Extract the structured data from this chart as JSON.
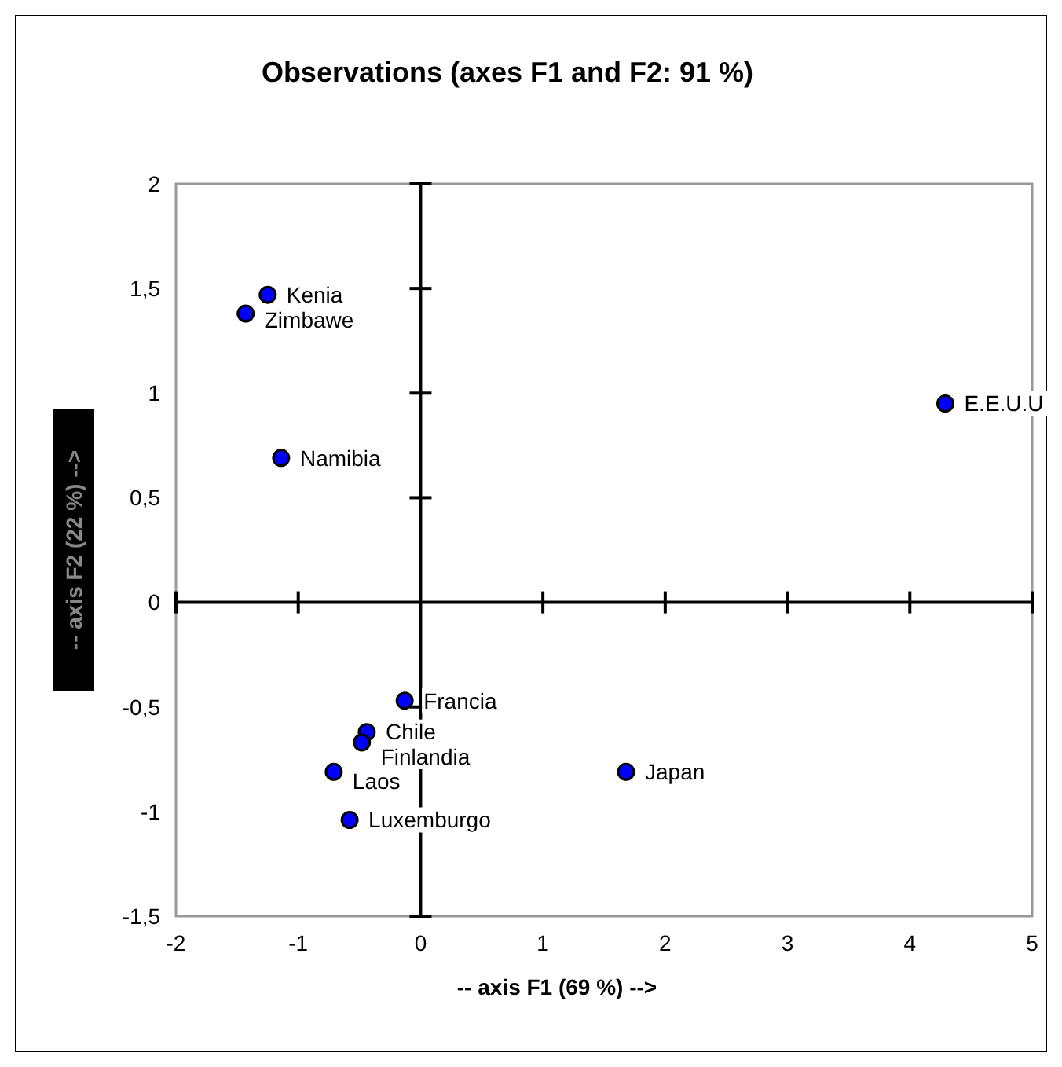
{
  "chart_data": {
    "type": "scatter",
    "title": "Observations (axes F1 and F2: 91 %)",
    "xlabel": "-- axis F1 (69 %) -->",
    "ylabel": "-- axis F2 (22 %) -->",
    "x": [
      -1.25,
      -1.43,
      -1.14,
      4.29,
      -0.13,
      -0.44,
      -0.48,
      -0.71,
      1.68,
      -0.58
    ],
    "series": [
      {
        "color": "#0000ff",
        "values": [
          1.47,
          1.38,
          0.69,
          0.95,
          -0.47,
          -0.62,
          -0.67,
          -0.81,
          -0.81,
          -1.04
        ]
      }
    ],
    "marker": "circle",
    "ref_lines": [
      {
        "axis": "x",
        "value": 0,
        "color": "#000000"
      }
    ],
    "xlim": [
      -2,
      5
    ],
    "xticks": [
      -2,
      -1,
      0,
      1,
      2,
      3,
      4,
      5
    ],
    "ylim": [
      -1.5,
      2
    ],
    "yticks": [
      {
        "value": -1.5,
        "label": "-1,5"
      },
      -1,
      {
        "value": -0.5,
        "label": "-0,5"
      },
      0,
      {
        "value": 0.5,
        "label": "0,5"
      },
      1,
      {
        "value": 1.5,
        "label": "1,5"
      },
      2
    ],
    "annotations": [
      {
        "text": "Kenia",
        "x": -1.25,
        "y": 1.47
      },
      {
        "text": "Zimbawe",
        "x": -1.43,
        "y": 1.38
      },
      {
        "text": "Namibia",
        "x": -1.14,
        "y": 0.69
      },
      {
        "text": "E.E.U.U",
        "x": 4.29,
        "y": 0.95
      },
      {
        "text": "Francia",
        "x": -0.13,
        "y": -0.47
      },
      {
        "text": "Chile",
        "x": -0.44,
        "y": -0.62
      },
      {
        "text": "Finlandia",
        "x": -0.48,
        "y": -0.67
      },
      {
        "text": "Laos",
        "x": -0.71,
        "y": -0.81
      },
      {
        "text": "Japan",
        "x": 1.68,
        "y": -0.81
      },
      {
        "text": "Luxemburgo",
        "x": -0.58,
        "y": -1.04
      }
    ]
  }
}
